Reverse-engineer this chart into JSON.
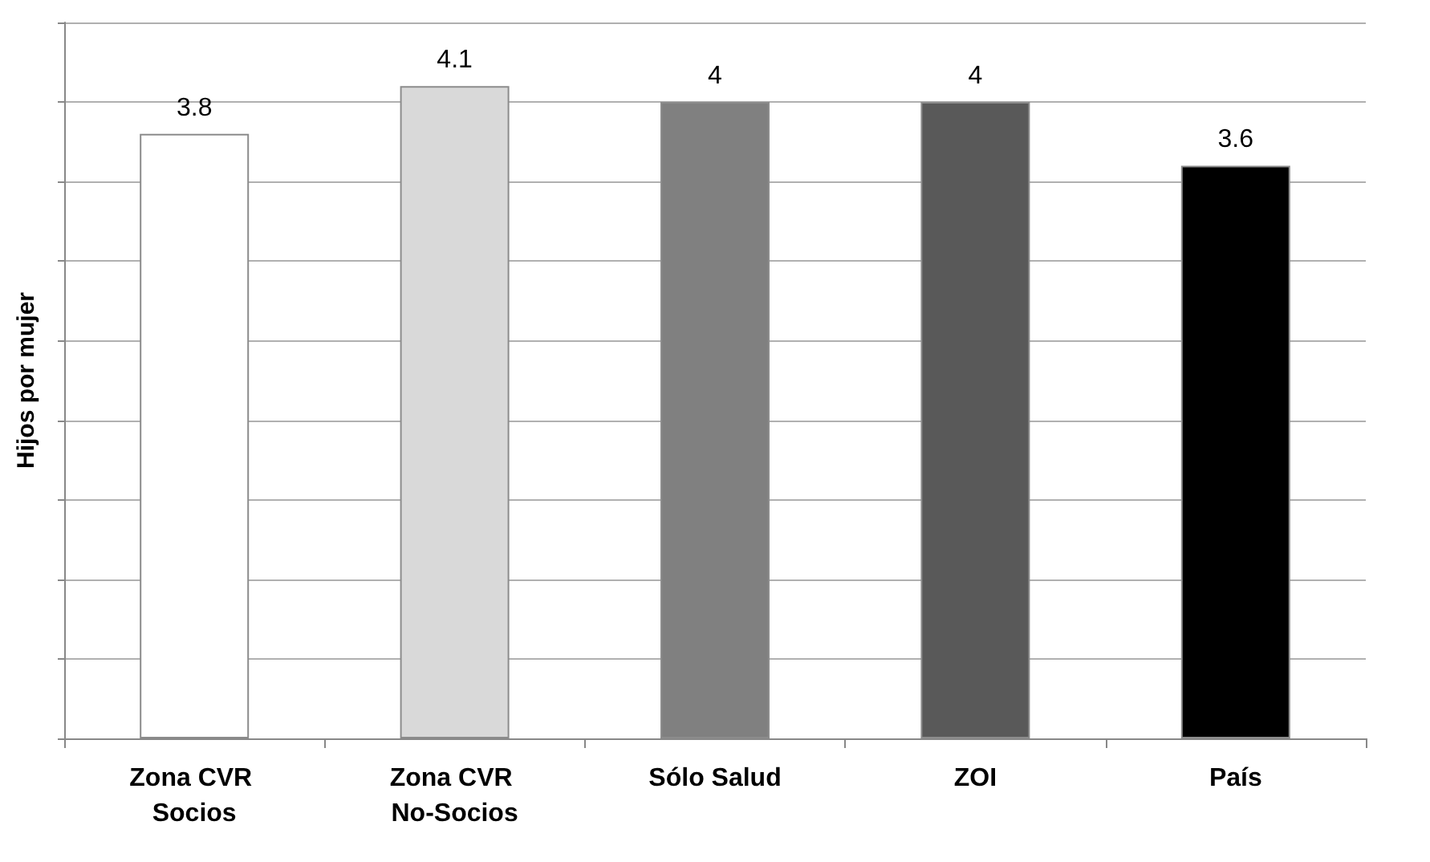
{
  "chart_data": {
    "type": "bar",
    "ylabel": "Hijos por mujer",
    "categories": [
      "Zona CVR Socios",
      "Zona CVR No-Socios",
      "Sólo Salud",
      "ZOI",
      "País"
    ],
    "values": [
      3.8,
      4.1,
      4,
      4,
      3.6
    ],
    "colors": [
      "#ffffff",
      "#d9d9d9",
      "#808080",
      "#595959",
      "#000000"
    ],
    "ylim": [
      0,
      4.5
    ],
    "yticks": [
      {
        "value": 0,
        "label": null
      },
      {
        "value": 0.5,
        "label": null
      },
      {
        "value": 1,
        "label": null
      },
      {
        "value": 1.5,
        "label": null
      },
      {
        "value": 2,
        "label": null
      },
      {
        "value": 2.5,
        "label": null
      },
      {
        "value": 3,
        "label": null
      },
      {
        "value": 3.5,
        "label": null
      },
      {
        "value": 4,
        "label": null
      },
      {
        "value": 4.5,
        "label": null
      }
    ],
    "grid": "y",
    "data_labels": true,
    "tick_labels": "x"
  }
}
